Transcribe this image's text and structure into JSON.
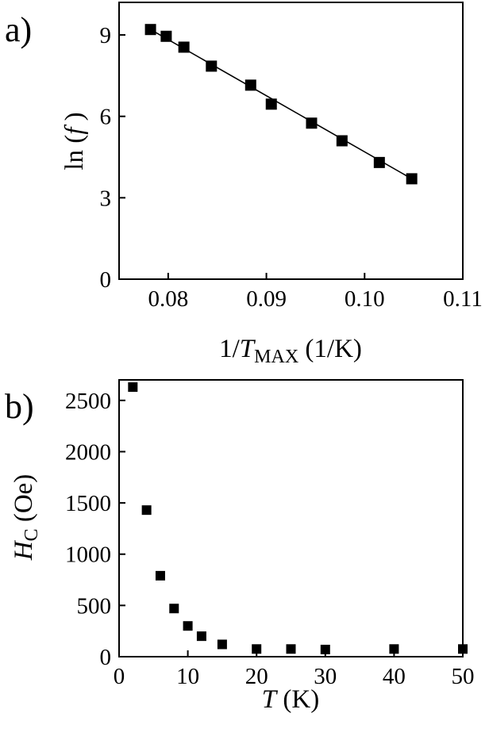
{
  "chart_data": [
    {
      "panel": "a)",
      "type": "scatter",
      "x": [
        0.0782,
        0.0798,
        0.0816,
        0.0844,
        0.0884,
        0.0905,
        0.0946,
        0.0977,
        0.1015,
        0.1048
      ],
      "y": [
        9.2,
        8.95,
        8.55,
        7.85,
        7.15,
        6.45,
        5.75,
        5.1,
        4.3,
        3.7
      ],
      "fit_line": {
        "x": [
          0.0782,
          0.1048
        ],
        "y": [
          9.2,
          3.7
        ]
      },
      "xlim": [
        0.075,
        0.11
      ],
      "ylim": [
        0,
        10.2
      ],
      "xticks": [
        0.08,
        0.09,
        0.1,
        0.11
      ],
      "xtick_labels": [
        "0.08",
        "0.09",
        "0.10",
        "0.11"
      ],
      "yticks": [
        0,
        3,
        6,
        9
      ],
      "ytick_labels": [
        "0",
        "3",
        "6",
        "9"
      ],
      "xlabel": {
        "pre": "1/",
        "var": "T",
        "sub": "MAX",
        "post": " (1/K)"
      },
      "ylabel": {
        "pre": "ln (",
        "var": "f",
        "post": " )"
      },
      "grid": false,
      "legend": "none"
    },
    {
      "panel": "b)",
      "type": "scatter",
      "x": [
        2,
        4,
        6,
        8,
        10,
        12,
        15,
        20,
        25,
        30,
        40,
        50
      ],
      "y": [
        2630,
        1430,
        790,
        470,
        300,
        200,
        120,
        75,
        75,
        70,
        75,
        75
      ],
      "xlim": [
        0,
        50
      ],
      "ylim": [
        0,
        2700
      ],
      "xticks": [
        0,
        10,
        20,
        30,
        40,
        50
      ],
      "xtick_labels": [
        "0",
        "10",
        "20",
        "30",
        "40",
        "50"
      ],
      "yticks": [
        0,
        500,
        1000,
        1500,
        2000,
        2500
      ],
      "ytick_labels": [
        "0",
        "500",
        "1000",
        "1500",
        "2000",
        "2500"
      ],
      "xlabel": {
        "var": "T",
        "post": " (K)"
      },
      "ylabel": {
        "var": "H",
        "sub": "C",
        "post": " (Oe)"
      },
      "grid": false,
      "legend": "none"
    }
  ]
}
